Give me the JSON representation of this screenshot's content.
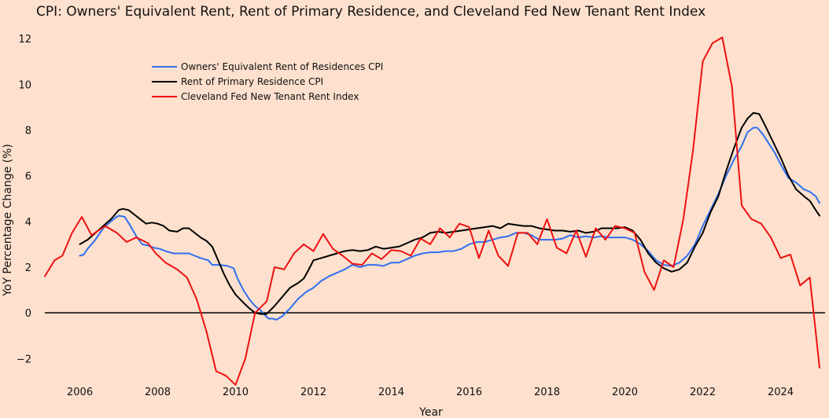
{
  "chart_data": {
    "type": "line",
    "title": "CPI: Owners' Equivalent Rent, Rent of Primary Residence, and Cleveland Fed New Tenant Rent Index",
    "xlabel": "Year",
    "ylabel": "YoY Percentage Change (%)",
    "xlim": [
      2005.1,
      2025.0
    ],
    "ylim": [
      -3.5,
      13.0
    ],
    "x_ticks": [
      2006,
      2008,
      2010,
      2012,
      2014,
      2016,
      2018,
      2020,
      2022,
      2024
    ],
    "x_tick_labels": [
      "2006",
      "2008",
      "2010",
      "2012",
      "2014",
      "2016",
      "2018",
      "2020",
      "2022",
      "2024"
    ],
    "y_ticks": [
      -2,
      0,
      2,
      4,
      6,
      8,
      10,
      12
    ],
    "y_tick_labels": [
      "−2",
      "0",
      "2",
      "4",
      "6",
      "8",
      "10",
      "12"
    ],
    "grid": false,
    "zero_line": true,
    "legend_position": "top-left",
    "series": [
      {
        "name": "Owners' Equivalent Rent of Residences CPI",
        "color": "#2f6ff0",
        "points": [
          [
            2006.0,
            2.5
          ],
          [
            2006.1,
            2.55
          ],
          [
            2006.2,
            2.8
          ],
          [
            2006.4,
            3.2
          ],
          [
            2006.6,
            3.7
          ],
          [
            2006.8,
            4.0
          ],
          [
            2006.9,
            4.15
          ],
          [
            2007.0,
            4.25
          ],
          [
            2007.15,
            4.2
          ],
          [
            2007.3,
            3.8
          ],
          [
            2007.45,
            3.35
          ],
          [
            2007.6,
            3.0
          ],
          [
            2007.75,
            2.95
          ],
          [
            2007.9,
            2.85
          ],
          [
            2008.05,
            2.8
          ],
          [
            2008.2,
            2.7
          ],
          [
            2008.4,
            2.6
          ],
          [
            2008.6,
            2.6
          ],
          [
            2008.8,
            2.6
          ],
          [
            2008.95,
            2.5
          ],
          [
            2009.1,
            2.4
          ],
          [
            2009.3,
            2.3
          ],
          [
            2009.4,
            2.1
          ],
          [
            2009.6,
            2.1
          ],
          [
            2009.8,
            2.05
          ],
          [
            2009.95,
            1.95
          ],
          [
            2010.05,
            1.5
          ],
          [
            2010.2,
            1.0
          ],
          [
            2010.35,
            0.6
          ],
          [
            2010.5,
            0.3
          ],
          [
            2010.65,
            0.1
          ],
          [
            2010.75,
            -0.1
          ],
          [
            2010.85,
            -0.25
          ],
          [
            2010.95,
            -0.25
          ],
          [
            2011.05,
            -0.3
          ],
          [
            2011.2,
            -0.15
          ],
          [
            2011.4,
            0.2
          ],
          [
            2011.6,
            0.6
          ],
          [
            2011.8,
            0.9
          ],
          [
            2012.0,
            1.1
          ],
          [
            2012.2,
            1.4
          ],
          [
            2012.4,
            1.6
          ],
          [
            2012.6,
            1.75
          ],
          [
            2012.8,
            1.9
          ],
          [
            2013.0,
            2.1
          ],
          [
            2013.2,
            2.0
          ],
          [
            2013.4,
            2.1
          ],
          [
            2013.6,
            2.1
          ],
          [
            2013.8,
            2.05
          ],
          [
            2014.0,
            2.2
          ],
          [
            2014.2,
            2.2
          ],
          [
            2014.4,
            2.35
          ],
          [
            2014.6,
            2.5
          ],
          [
            2014.8,
            2.6
          ],
          [
            2015.0,
            2.65
          ],
          [
            2015.2,
            2.65
          ],
          [
            2015.4,
            2.7
          ],
          [
            2015.6,
            2.7
          ],
          [
            2015.8,
            2.8
          ],
          [
            2016.0,
            3.0
          ],
          [
            2016.2,
            3.1
          ],
          [
            2016.4,
            3.1
          ],
          [
            2016.6,
            3.2
          ],
          [
            2016.8,
            3.3
          ],
          [
            2017.0,
            3.35
          ],
          [
            2017.2,
            3.5
          ],
          [
            2017.4,
            3.5
          ],
          [
            2017.6,
            3.4
          ],
          [
            2017.8,
            3.2
          ],
          [
            2018.0,
            3.2
          ],
          [
            2018.2,
            3.2
          ],
          [
            2018.4,
            3.25
          ],
          [
            2018.6,
            3.4
          ],
          [
            2018.8,
            3.3
          ],
          [
            2019.0,
            3.35
          ],
          [
            2019.2,
            3.3
          ],
          [
            2019.4,
            3.35
          ],
          [
            2019.6,
            3.3
          ],
          [
            2019.8,
            3.3
          ],
          [
            2020.0,
            3.3
          ],
          [
            2020.2,
            3.2
          ],
          [
            2020.4,
            3.0
          ],
          [
            2020.6,
            2.7
          ],
          [
            2020.8,
            2.3
          ],
          [
            2021.0,
            2.1
          ],
          [
            2021.2,
            2.05
          ],
          [
            2021.4,
            2.2
          ],
          [
            2021.6,
            2.5
          ],
          [
            2021.8,
            3.0
          ],
          [
            2022.0,
            3.8
          ],
          [
            2022.2,
            4.5
          ],
          [
            2022.4,
            5.2
          ],
          [
            2022.6,
            6.0
          ],
          [
            2022.8,
            6.7
          ],
          [
            2023.0,
            7.3
          ],
          [
            2023.15,
            7.9
          ],
          [
            2023.3,
            8.1
          ],
          [
            2023.4,
            8.1
          ],
          [
            2023.55,
            7.8
          ],
          [
            2023.7,
            7.4
          ],
          [
            2023.85,
            7.0
          ],
          [
            2024.0,
            6.5
          ],
          [
            2024.2,
            5.9
          ],
          [
            2024.4,
            5.7
          ],
          [
            2024.6,
            5.4
          ],
          [
            2024.75,
            5.3
          ],
          [
            2024.9,
            5.1
          ],
          [
            2025.0,
            4.8
          ]
        ]
      },
      {
        "name": "Rent of Primary Residence CPI",
        "color": "#000000",
        "points": [
          [
            2006.0,
            3.0
          ],
          [
            2006.2,
            3.2
          ],
          [
            2006.4,
            3.5
          ],
          [
            2006.6,
            3.8
          ],
          [
            2006.8,
            4.1
          ],
          [
            2006.9,
            4.3
          ],
          [
            2007.0,
            4.5
          ],
          [
            2007.1,
            4.55
          ],
          [
            2007.25,
            4.5
          ],
          [
            2007.4,
            4.3
          ],
          [
            2007.55,
            4.1
          ],
          [
            2007.7,
            3.9
          ],
          [
            2007.85,
            3.95
          ],
          [
            2008.0,
            3.9
          ],
          [
            2008.15,
            3.8
          ],
          [
            2008.3,
            3.6
          ],
          [
            2008.5,
            3.55
          ],
          [
            2008.65,
            3.7
          ],
          [
            2008.8,
            3.7
          ],
          [
            2008.95,
            3.5
          ],
          [
            2009.1,
            3.3
          ],
          [
            2009.25,
            3.15
          ],
          [
            2009.4,
            2.9
          ],
          [
            2009.55,
            2.3
          ],
          [
            2009.7,
            1.7
          ],
          [
            2009.85,
            1.2
          ],
          [
            2010.0,
            0.8
          ],
          [
            2010.2,
            0.45
          ],
          [
            2010.35,
            0.2
          ],
          [
            2010.5,
            0.0
          ],
          [
            2010.65,
            -0.05
          ],
          [
            2010.8,
            -0.05
          ],
          [
            2011.0,
            0.3
          ],
          [
            2011.2,
            0.7
          ],
          [
            2011.4,
            1.1
          ],
          [
            2011.6,
            1.3
          ],
          [
            2011.75,
            1.5
          ],
          [
            2011.85,
            1.8
          ],
          [
            2012.0,
            2.3
          ],
          [
            2012.2,
            2.4
          ],
          [
            2012.4,
            2.5
          ],
          [
            2012.6,
            2.6
          ],
          [
            2012.8,
            2.7
          ],
          [
            2013.0,
            2.75
          ],
          [
            2013.2,
            2.7
          ],
          [
            2013.4,
            2.75
          ],
          [
            2013.6,
            2.9
          ],
          [
            2013.8,
            2.8
          ],
          [
            2014.0,
            2.85
          ],
          [
            2014.2,
            2.9
          ],
          [
            2014.4,
            3.05
          ],
          [
            2014.6,
            3.2
          ],
          [
            2014.8,
            3.3
          ],
          [
            2015.0,
            3.5
          ],
          [
            2015.2,
            3.55
          ],
          [
            2015.4,
            3.5
          ],
          [
            2015.6,
            3.55
          ],
          [
            2015.8,
            3.6
          ],
          [
            2016.0,
            3.65
          ],
          [
            2016.2,
            3.7
          ],
          [
            2016.4,
            3.75
          ],
          [
            2016.6,
            3.8
          ],
          [
            2016.8,
            3.7
          ],
          [
            2017.0,
            3.9
          ],
          [
            2017.2,
            3.85
          ],
          [
            2017.4,
            3.8
          ],
          [
            2017.6,
            3.8
          ],
          [
            2017.8,
            3.7
          ],
          [
            2018.0,
            3.65
          ],
          [
            2018.2,
            3.6
          ],
          [
            2018.4,
            3.6
          ],
          [
            2018.6,
            3.55
          ],
          [
            2018.8,
            3.6
          ],
          [
            2019.0,
            3.5
          ],
          [
            2019.2,
            3.55
          ],
          [
            2019.4,
            3.7
          ],
          [
            2019.6,
            3.7
          ],
          [
            2019.8,
            3.7
          ],
          [
            2020.0,
            3.75
          ],
          [
            2020.2,
            3.6
          ],
          [
            2020.4,
            3.2
          ],
          [
            2020.6,
            2.6
          ],
          [
            2020.8,
            2.2
          ],
          [
            2021.0,
            1.95
          ],
          [
            2021.2,
            1.8
          ],
          [
            2021.4,
            1.9
          ],
          [
            2021.6,
            2.2
          ],
          [
            2021.8,
            2.9
          ],
          [
            2022.0,
            3.5
          ],
          [
            2022.2,
            4.4
          ],
          [
            2022.4,
            5.1
          ],
          [
            2022.6,
            6.2
          ],
          [
            2022.8,
            7.2
          ],
          [
            2023.0,
            8.1
          ],
          [
            2023.15,
            8.5
          ],
          [
            2023.3,
            8.75
          ],
          [
            2023.45,
            8.7
          ],
          [
            2023.6,
            8.2
          ],
          [
            2023.8,
            7.5
          ],
          [
            2024.0,
            6.8
          ],
          [
            2024.2,
            6.0
          ],
          [
            2024.4,
            5.4
          ],
          [
            2024.6,
            5.1
          ],
          [
            2024.75,
            4.9
          ],
          [
            2024.9,
            4.5
          ],
          [
            2025.0,
            4.25
          ]
        ]
      },
      {
        "name": "Cleveland Fed New Tenant Rent Index",
        "color": "#ee1111",
        "points": [
          [
            2005.1,
            1.6
          ],
          [
            2005.35,
            2.3
          ],
          [
            2005.55,
            2.5
          ],
          [
            2005.8,
            3.5
          ],
          [
            2006.05,
            4.2
          ],
          [
            2006.3,
            3.4
          ],
          [
            2006.65,
            3.8
          ],
          [
            2006.95,
            3.5
          ],
          [
            2007.2,
            3.1
          ],
          [
            2007.45,
            3.3
          ],
          [
            2007.75,
            3.05
          ],
          [
            2007.95,
            2.6
          ],
          [
            2008.2,
            2.2
          ],
          [
            2008.5,
            1.9
          ],
          [
            2008.75,
            1.55
          ],
          [
            2009.0,
            0.6
          ],
          [
            2009.25,
            -0.8
          ],
          [
            2009.5,
            -2.55
          ],
          [
            2009.75,
            -2.75
          ],
          [
            2010.0,
            -3.15
          ],
          [
            2010.25,
            -2.0
          ],
          [
            2010.5,
            0.0
          ],
          [
            2010.8,
            0.5
          ],
          [
            2011.0,
            2.0
          ],
          [
            2011.25,
            1.9
          ],
          [
            2011.5,
            2.6
          ],
          [
            2011.75,
            3.0
          ],
          [
            2012.0,
            2.7
          ],
          [
            2012.25,
            3.45
          ],
          [
            2012.5,
            2.8
          ],
          [
            2012.75,
            2.5
          ],
          [
            2013.0,
            2.15
          ],
          [
            2013.25,
            2.1
          ],
          [
            2013.5,
            2.6
          ],
          [
            2013.75,
            2.35
          ],
          [
            2014.0,
            2.75
          ],
          [
            2014.25,
            2.7
          ],
          [
            2014.5,
            2.5
          ],
          [
            2014.75,
            3.25
          ],
          [
            2015.0,
            3.0
          ],
          [
            2015.25,
            3.7
          ],
          [
            2015.5,
            3.3
          ],
          [
            2015.75,
            3.9
          ],
          [
            2016.0,
            3.75
          ],
          [
            2016.25,
            2.4
          ],
          [
            2016.5,
            3.6
          ],
          [
            2016.75,
            2.5
          ],
          [
            2017.0,
            2.05
          ],
          [
            2017.25,
            3.5
          ],
          [
            2017.5,
            3.5
          ],
          [
            2017.75,
            3.0
          ],
          [
            2018.0,
            4.1
          ],
          [
            2018.25,
            2.85
          ],
          [
            2018.5,
            2.6
          ],
          [
            2018.75,
            3.6
          ],
          [
            2019.0,
            2.45
          ],
          [
            2019.25,
            3.7
          ],
          [
            2019.5,
            3.2
          ],
          [
            2019.75,
            3.8
          ],
          [
            2020.0,
            3.7
          ],
          [
            2020.25,
            3.5
          ],
          [
            2020.5,
            1.8
          ],
          [
            2020.75,
            1.0
          ],
          [
            2021.0,
            2.3
          ],
          [
            2021.25,
            2.0
          ],
          [
            2021.5,
            4.1
          ],
          [
            2021.75,
            7.1
          ],
          [
            2022.0,
            11.0
          ],
          [
            2022.25,
            11.8
          ],
          [
            2022.5,
            12.05
          ],
          [
            2022.75,
            9.9
          ],
          [
            2023.0,
            4.7
          ],
          [
            2023.25,
            4.1
          ],
          [
            2023.5,
            3.9
          ],
          [
            2023.75,
            3.3
          ],
          [
            2024.0,
            2.4
          ],
          [
            2024.25,
            2.55
          ],
          [
            2024.5,
            1.2
          ],
          [
            2024.75,
            1.55
          ],
          [
            2025.0,
            -2.4
          ]
        ]
      }
    ]
  }
}
